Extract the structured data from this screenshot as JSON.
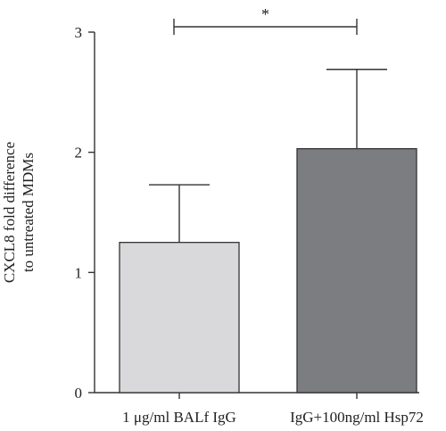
{
  "chart_data": {
    "type": "bar",
    "categories": [
      "1 μg/ml BALf IgG",
      "IgG+100ng/ml Hsp72"
    ],
    "values": [
      1.25,
      2.03
    ],
    "error_upper": [
      1.73,
      2.69
    ],
    "ylabel_lines": [
      "CXCL8 fold difference",
      "to untreated MDMs"
    ],
    "xlabel": "",
    "ylim": [
      0,
      3
    ],
    "yticks": [
      0,
      1,
      2,
      3
    ],
    "grid": false,
    "bar_colors": [
      "#d9d9db",
      "#7b7d80"
    ],
    "axis_color": "#333333",
    "significance": {
      "label": "*",
      "between": [
        0,
        1
      ]
    }
  }
}
